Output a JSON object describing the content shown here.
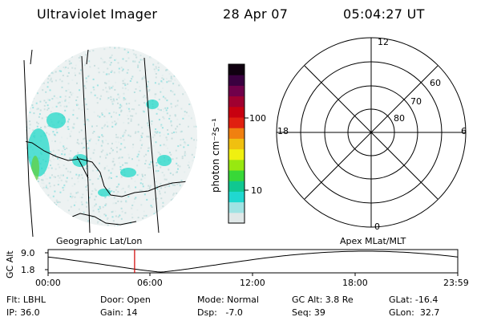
{
  "header": {
    "instrument": "Ultraviolet Imager",
    "date": "28 Apr 07",
    "time": "05:04:27 UT"
  },
  "colorbar": {
    "label": "photon cm⁻²s⁻¹",
    "ticks": [
      "100",
      "10"
    ],
    "colors": [
      "#e0e8e8",
      "#9fe3e3",
      "#20d8d0",
      "#10c890",
      "#38d838",
      "#98e810",
      "#f0f010",
      "#f0c010",
      "#f08010",
      "#e02010",
      "#c80010",
      "#a00030",
      "#70004a",
      "#3a0040",
      "#100010"
    ]
  },
  "polar_plot": {
    "mlt_labels": [
      "12",
      "18",
      "6",
      "0"
    ],
    "lat_labels": [
      "60",
      "70",
      "80"
    ]
  },
  "map_labels": {
    "left": "Geographic Lat/Lon",
    "right": "Apex MLat/MLT"
  },
  "altitude_plot": {
    "ylabel": "GC Alt",
    "yticks": [
      "9.0",
      "1.8"
    ],
    "xticks": [
      "00:00",
      "06:00",
      "12:00",
      "18:00",
      "23:59"
    ],
    "current_time_hour": 5.07
  },
  "info": {
    "filter": "Flt: LBHL",
    "door": "Door: Open",
    "mode": "Mode: Normal",
    "gc_alt": "GC Alt: 3.8 Re",
    "glat": "GLat: -16.4",
    "ip": "IP: 36.0",
    "gain": "Gain: 14",
    "dsp": "Dsp:   -7.0",
    "seq": "Seq: 39",
    "glon": "GLon:  32.7"
  },
  "accent": {
    "cursor": "#d00000",
    "aurora": "#20d8d0",
    "speckle": "#c8d8d8"
  }
}
